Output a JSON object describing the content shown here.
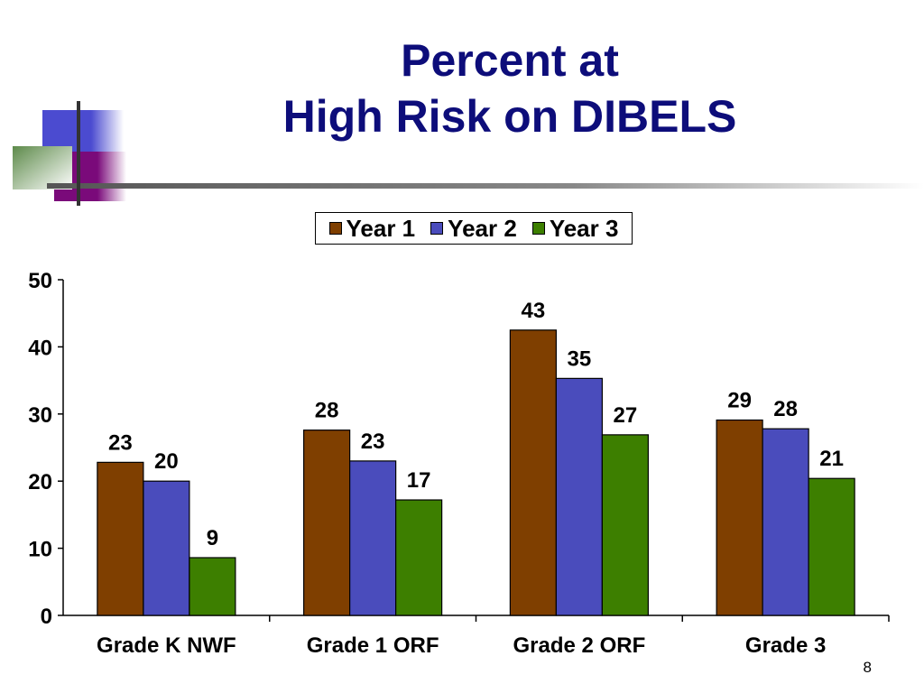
{
  "slide": {
    "page_number": "8"
  },
  "chart_data": {
    "type": "bar",
    "title": "Percent at High Risk on DIBELS",
    "title_lines": [
      "Percent at",
      "High Risk on DIBELS"
    ],
    "categories": [
      "Grade K NWF",
      "Grade 1 ORF",
      "Grade 2 ORF",
      "Grade 3"
    ],
    "series": [
      {
        "name": "Year 1",
        "color": "#7f3f00",
        "values": [
          23,
          28,
          43,
          29
        ],
        "raw": [
          22.8,
          27.6,
          42.5,
          29.1
        ]
      },
      {
        "name": "Year 2",
        "color": "#4a4cbc",
        "values": [
          20,
          23,
          35,
          28
        ],
        "raw": [
          20.0,
          23.0,
          35.3,
          27.8
        ]
      },
      {
        "name": "Year 3",
        "color": "#3d7f00",
        "values": [
          9,
          17,
          27,
          21
        ],
        "raw": [
          8.6,
          17.2,
          26.9,
          20.4
        ]
      }
    ],
    "ylim": [
      0,
      50
    ],
    "yticks": [
      0,
      10,
      20,
      30,
      40,
      50
    ],
    "grid": false,
    "legend": "top",
    "xlabel": "",
    "ylabel": ""
  }
}
